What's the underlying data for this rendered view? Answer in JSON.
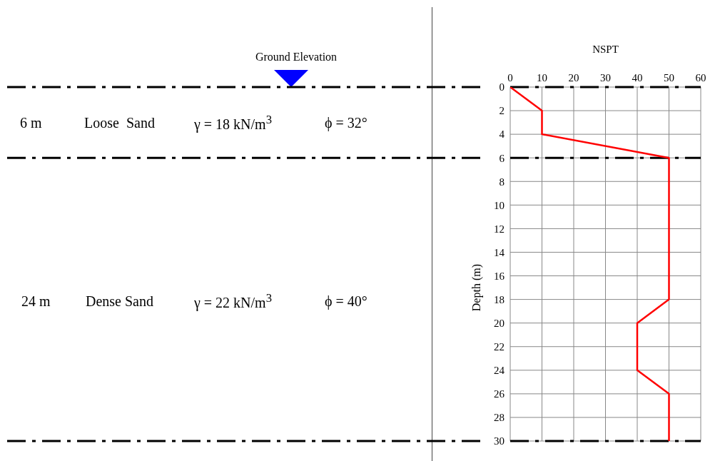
{
  "chart_data": {
    "type": "line",
    "xlabel": "NSPT",
    "ylabel": "Depth (m)",
    "x": [
      0,
      10,
      10,
      50,
      50,
      40,
      40,
      50,
      50
    ],
    "series": [
      {
        "color": "#ff0000",
        "values": [
          0,
          2,
          4,
          6,
          18,
          20,
          24,
          26,
          30
        ]
      }
    ],
    "xlim": [
      0,
      60
    ],
    "xticks": [
      0,
      10,
      20,
      30,
      40,
      50,
      60
    ],
    "ylim": [
      30,
      0
    ],
    "yticks": [
      0,
      2,
      4,
      6,
      8,
      10,
      12,
      14,
      16,
      18,
      20,
      22,
      24,
      26,
      28,
      30
    ],
    "grid": true,
    "marker": "none",
    "ref_lines": [
      {
        "axis": "y",
        "value": 0,
        "color": "#000000",
        "line_style": "dashed"
      },
      {
        "axis": "y",
        "value": 6,
        "color": "#000000",
        "line_style": "dashed"
      },
      {
        "axis": "y",
        "value": 30,
        "color": "#000000",
        "line_style": "dashed"
      }
    ],
    "annotations": [
      "Ground Elevation",
      "6 m",
      "Loose  Sand",
      "γ = 18 kN/m$^{3}$",
      "ϕ = 32°",
      "24 m",
      "Dense Sand",
      "γ = 22 kN/m$^{3}$",
      "ϕ = 40°"
    ]
  }
}
